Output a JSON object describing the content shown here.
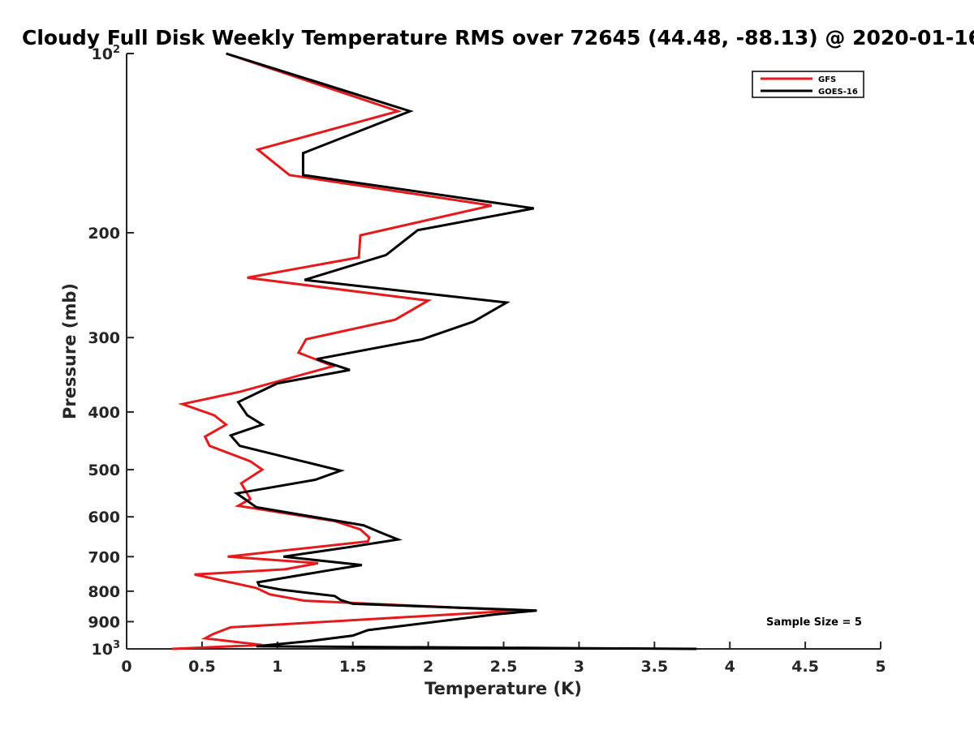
{
  "chart_data": {
    "type": "line",
    "title": "Cloudy Full Disk Weekly Temperature RMS over 72645 (44.48, -88.13) @ 2020-01-16",
    "xlabel": "Temperature (K)",
    "ylabel": "Pressure (mb)",
    "xlim": [
      0,
      5
    ],
    "ylim": [
      100,
      1000
    ],
    "y_scale": "log",
    "y_reversed": true,
    "grid": false,
    "legend_position": "top-right",
    "x_ticks": [
      0,
      0.5,
      1,
      1.5,
      2,
      2.5,
      3,
      3.5,
      4,
      4.5,
      5
    ],
    "x_tick_labels": [
      "0",
      "0.5",
      "1",
      "1.5",
      "2",
      "2.5",
      "3",
      "3.5",
      "4",
      "4.5",
      "5"
    ],
    "y_ticks": [
      {
        "value": 100,
        "base": "10",
        "exp": "2"
      },
      {
        "value": 200,
        "label": "200"
      },
      {
        "value": 300,
        "label": "300"
      },
      {
        "value": 400,
        "label": "400"
      },
      {
        "value": 500,
        "label": "500"
      },
      {
        "value": 600,
        "label": "600"
      },
      {
        "value": 700,
        "label": "700"
      },
      {
        "value": 800,
        "label": "800"
      },
      {
        "value": 900,
        "label": "900"
      },
      {
        "value": 1000,
        "base": "10",
        "exp": "3"
      }
    ],
    "series": [
      {
        "name": "GFS",
        "color": "#e41a1c",
        "points": [
          [
            0.66,
            100
          ],
          [
            1.8,
            125
          ],
          [
            0.87,
            145
          ],
          [
            1.08,
            160
          ],
          [
            2.42,
            180
          ],
          [
            1.55,
            202
          ],
          [
            1.54,
            220
          ],
          [
            0.8,
            238
          ],
          [
            2.0,
            260
          ],
          [
            1.78,
            280
          ],
          [
            1.19,
            302
          ],
          [
            1.14,
            318
          ],
          [
            1.37,
            335
          ],
          [
            0.75,
            370
          ],
          [
            0.37,
            388
          ],
          [
            0.58,
            405
          ],
          [
            0.66,
            420
          ],
          [
            0.52,
            440
          ],
          [
            0.55,
            456
          ],
          [
            0.82,
            484
          ],
          [
            0.9,
            500
          ],
          [
            0.76,
            527
          ],
          [
            0.82,
            560
          ],
          [
            0.74,
            575
          ],
          [
            1.38,
            610
          ],
          [
            1.55,
            630
          ],
          [
            1.61,
            650
          ],
          [
            1.6,
            660
          ],
          [
            0.67,
            700
          ],
          [
            1.27,
            718
          ],
          [
            1.05,
            735
          ],
          [
            0.45,
            750
          ],
          [
            0.86,
            790
          ],
          [
            0.95,
            810
          ],
          [
            1.18,
            830
          ],
          [
            2.6,
            862
          ],
          [
            0.69,
            920
          ],
          [
            0.57,
            945
          ],
          [
            0.52,
            960
          ],
          [
            0.9,
            985
          ],
          [
            0.3,
            1000
          ]
        ]
      },
      {
        "name": "GOES-16",
        "color": "#000000",
        "points": [
          [
            0.66,
            100
          ],
          [
            1.88,
            125
          ],
          [
            1.17,
            147
          ],
          [
            1.17,
            160
          ],
          [
            2.7,
            182
          ],
          [
            1.93,
            198
          ],
          [
            1.72,
            218
          ],
          [
            1.18,
            240
          ],
          [
            2.52,
            262
          ],
          [
            2.3,
            282
          ],
          [
            1.96,
            302
          ],
          [
            1.26,
            326
          ],
          [
            1.48,
            340
          ],
          [
            1.0,
            358
          ],
          [
            0.74,
            385
          ],
          [
            0.8,
            405
          ],
          [
            0.9,
            420
          ],
          [
            0.69,
            438
          ],
          [
            0.75,
            456
          ],
          [
            1.18,
            485
          ],
          [
            1.42,
            502
          ],
          [
            1.25,
            520
          ],
          [
            0.73,
            548
          ],
          [
            0.77,
            557
          ],
          [
            0.86,
            578
          ],
          [
            1.57,
            620
          ],
          [
            1.7,
            640
          ],
          [
            1.8,
            655
          ],
          [
            1.47,
            675
          ],
          [
            1.04,
            700
          ],
          [
            1.56,
            723
          ],
          [
            1.34,
            738
          ],
          [
            0.87,
            773
          ],
          [
            0.88,
            783
          ],
          [
            1.02,
            795
          ],
          [
            1.38,
            815
          ],
          [
            1.42,
            828
          ],
          [
            1.5,
            840
          ],
          [
            2.72,
            862
          ],
          [
            2.45,
            875
          ],
          [
            1.6,
            930
          ],
          [
            1.5,
            950
          ],
          [
            1.22,
            970
          ],
          [
            0.86,
            990
          ],
          [
            3.78,
            1000
          ]
        ]
      }
    ],
    "annotations": [
      "Sample Size = 5"
    ]
  }
}
